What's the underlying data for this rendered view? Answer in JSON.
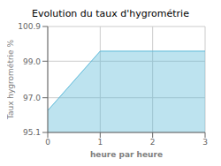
{
  "chart_data": {
    "type": "area",
    "title": "Evolution du taux d'hygrométrie",
    "xlabel": "heure par heure",
    "ylabel": "Taux hygrométrie %",
    "x": [
      0,
      1,
      3
    ],
    "values": [
      96.3,
      99.55,
      99.55
    ],
    "color": "#5ab8d8",
    "xlim": [
      0,
      3
    ],
    "ylim": [
      95.1,
      100.9
    ],
    "xticks": [
      0,
      1,
      2,
      3
    ],
    "yticks": [
      95.1,
      {
        "value": 97.0,
        "label": "97.0"
      },
      {
        "value": 99.0,
        "label": "99.0"
      },
      100.9
    ],
    "grid": true
  }
}
